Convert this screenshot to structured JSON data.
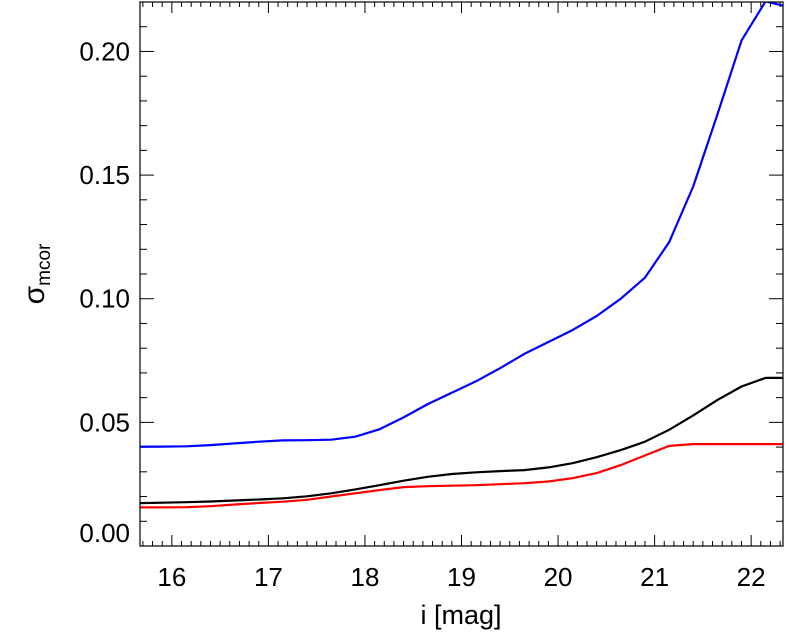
{
  "chart_data": {
    "type": "line",
    "title": "",
    "xlabel": "i [mag]",
    "ylabel": "σ",
    "ylabel_subscript": "mcor",
    "xlim": [
      15.67,
      22.33
    ],
    "ylim": [
      0.0,
      0.22
    ],
    "grid": false,
    "x_ticks": [
      "16",
      "17",
      "18",
      "19",
      "20",
      "21",
      "22"
    ],
    "y_ticks": [
      "0.00",
      "0.05",
      "0.10",
      "0.15",
      "0.20"
    ],
    "x": [
      15.65,
      15.9,
      16.15,
      16.4,
      16.65,
      16.9,
      17.15,
      17.4,
      17.65,
      17.9,
      18.15,
      18.4,
      18.65,
      18.9,
      19.15,
      19.4,
      19.65,
      19.9,
      20.15,
      20.4,
      20.65,
      20.9,
      21.15,
      21.4,
      21.65,
      21.9,
      22.15,
      22.4
    ],
    "series": [
      {
        "color": "#0000ff",
        "values": [
          0.0401,
          0.0402,
          0.0403,
          0.0408,
          0.0415,
          0.0422,
          0.0427,
          0.0428,
          0.043,
          0.0442,
          0.0472,
          0.052,
          0.0574,
          0.062,
          0.0666,
          0.0719,
          0.0777,
          0.0825,
          0.0873,
          0.093,
          0.1,
          0.1085,
          0.1228,
          0.1454,
          0.1744,
          0.2044,
          0.2203,
          0.2178
        ]
      },
      {
        "color": "#000000",
        "values": [
          0.0173,
          0.0175,
          0.0177,
          0.018,
          0.0184,
          0.0188,
          0.0193,
          0.0201,
          0.0213,
          0.0229,
          0.0246,
          0.0264,
          0.028,
          0.0291,
          0.0298,
          0.0303,
          0.0307,
          0.0318,
          0.0335,
          0.0359,
          0.0388,
          0.0422,
          0.047,
          0.0528,
          0.059,
          0.0645,
          0.068,
          0.068
        ]
      },
      {
        "color": "#ff0000",
        "values": [
          0.0156,
          0.0156,
          0.0157,
          0.0161,
          0.0168,
          0.0174,
          0.0179,
          0.0187,
          0.02,
          0.0213,
          0.0226,
          0.0238,
          0.0242,
          0.0244,
          0.0246,
          0.025,
          0.0254,
          0.0261,
          0.0274,
          0.0295,
          0.0327,
          0.0366,
          0.0405,
          0.0412,
          0.0412,
          0.0412,
          0.0412,
          0.0412
        ]
      }
    ]
  }
}
